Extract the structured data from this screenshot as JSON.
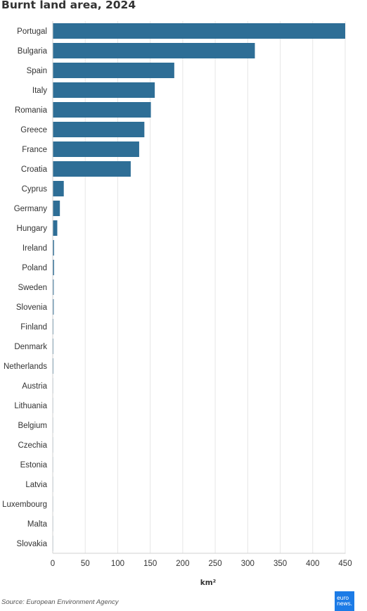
{
  "title": "Burnt land area, 2024",
  "source": "Source: European Environment Agency",
  "logo_text": "euronews.",
  "colors": {
    "bar": "#2e6e96",
    "grid": "#e6e6e6",
    "axis": "#d0d0d0",
    "logo": "#1c7be6"
  },
  "chart_data": {
    "type": "bar",
    "orientation": "horizontal",
    "categories": [
      "Portugal",
      "Bulgaria",
      "Spain",
      "Italy",
      "Romania",
      "Greece",
      "France",
      "Croatia",
      "Cyprus",
      "Germany",
      "Hungary",
      "Ireland",
      "Poland",
      "Sweden",
      "Slovenia",
      "Finland",
      "Denmark",
      "Netherlands",
      "Austria",
      "Lithuania",
      "Belgium",
      "Czechia",
      "Estonia",
      "Latvia",
      "Luxembourg",
      "Malta",
      "Slovakia"
    ],
    "values": [
      450,
      311,
      187,
      157,
      151,
      141,
      133,
      120,
      17,
      11,
      7,
      2,
      2,
      1.5,
      1.5,
      1,
      1,
      1,
      0.5,
      0.3,
      0.2,
      0.2,
      0.1,
      0.1,
      0.1,
      0.1,
      0.1
    ],
    "title": "Burnt land area, 2024",
    "xlabel": "km²",
    "ylabel": "",
    "xlim": [
      0,
      450
    ],
    "xticks": [
      0,
      50,
      100,
      150,
      200,
      250,
      300,
      350,
      400,
      450
    ],
    "grid": true,
    "legend": "none"
  }
}
